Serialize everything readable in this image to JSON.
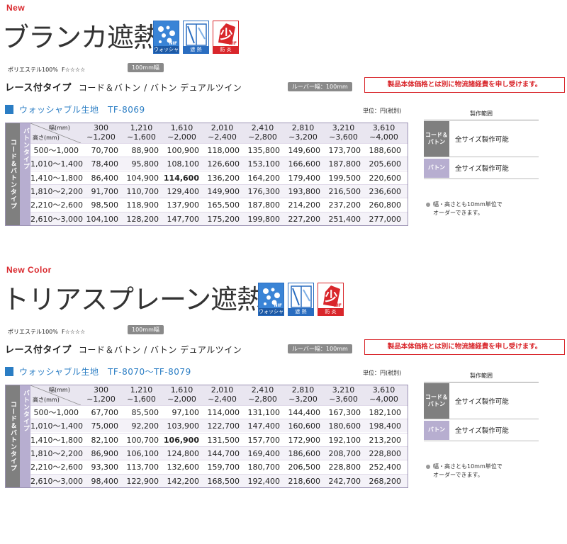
{
  "sections": [
    {
      "tag": "New",
      "title": "ブランカ遮熱",
      "icons": [
        {
          "name": "washable-icon",
          "label": "ウォッシャブル",
          "badge": "NIF"
        },
        {
          "name": "heat-shield-icon",
          "label": "遮 熱",
          "badge": ""
        },
        {
          "name": "fireproof-icon",
          "label": "防 炎",
          "badge": "NIF"
        }
      ],
      "material": "ポリエステル100%",
      "formaldehyde": "F☆☆☆☆",
      "width_badge": "100mm幅",
      "type_label": "レース付タイプ",
      "type_options": "コード＆バトン / バトン デュアルツイン",
      "louver_badge": "ルーバー幅：100mm",
      "notice": "製品本体価格とは別に物流諸経費を申し受けます。",
      "fabric": "ウォッシャブル生地　TF-8069",
      "unit": "単位：円(税別)",
      "side_cord": "コード＆バトンタイプ",
      "side_baton": "バトンタイプ",
      "header_width": "幅(mm)",
      "header_height": "高さ(mm)",
      "columns": [
        [
          "300",
          "~1,200"
        ],
        [
          "1,210",
          "~1,600"
        ],
        [
          "1,610",
          "~2,000"
        ],
        [
          "2,010",
          "~2,400"
        ],
        [
          "2,410",
          "~2,800"
        ],
        [
          "2,810",
          "~3,200"
        ],
        [
          "3,210",
          "~3,600"
        ],
        [
          "3,610",
          "~4,000"
        ]
      ],
      "rows": [
        {
          "h": "500～1,000",
          "v": [
            "70,700",
            "88,900",
            "100,900",
            "118,000",
            "135,800",
            "149,600",
            "173,700",
            "188,600"
          ]
        },
        {
          "h": "1,010～1,400",
          "v": [
            "78,400",
            "95,800",
            "108,100",
            "126,600",
            "153,100",
            "166,600",
            "187,800",
            "205,600"
          ]
        },
        {
          "h": "1,410～1,800",
          "v": [
            "86,400",
            "104,900",
            "114,600",
            "136,200",
            "164,200",
            "179,400",
            "199,500",
            "220,600"
          ]
        },
        {
          "h": "1,810～2,200",
          "v": [
            "91,700",
            "110,700",
            "129,400",
            "149,900",
            "176,300",
            "193,800",
            "216,500",
            "236,600"
          ]
        },
        {
          "h": "2,210～2,600",
          "v": [
            "98,500",
            "118,900",
            "137,900",
            "165,500",
            "187,800",
            "214,200",
            "237,200",
            "260,800"
          ]
        },
        {
          "h": "2,610～3,000",
          "v": [
            "104,100",
            "128,200",
            "147,700",
            "175,200",
            "199,800",
            "227,200",
            "251,400",
            "277,000"
          ]
        }
      ],
      "highlight": {
        "row": 2,
        "col": 2
      },
      "range_title": "製作範囲",
      "range_cord_label": "コード＆バトン",
      "range_cord_value": "全サイズ製作可能",
      "range_baton_label": "バトン",
      "range_baton_value": "全サイズ製作可能",
      "note1": "幅・高さとも10mm単位で",
      "note2": "オーダーできます。"
    },
    {
      "tag": "New Color",
      "title": "トリアスプレーン遮熱",
      "icons": [
        {
          "name": "washable-icon",
          "label": "ウォッシャブル",
          "badge": "NIF"
        },
        {
          "name": "heat-shield-icon",
          "label": "遮 熱",
          "badge": ""
        },
        {
          "name": "fireproof-icon",
          "label": "防 炎",
          "badge": "NIF"
        }
      ],
      "material": "ポリエステル100%",
      "formaldehyde": "F☆☆☆☆",
      "width_badge": "100mm幅",
      "type_label": "レース付タイプ",
      "type_options": "コード＆バトン / バトン デュアルツイン",
      "louver_badge": "ルーバー幅：100mm",
      "notice": "製品本体価格とは別に物流諸経費を申し受けます。",
      "fabric": "ウォッシャブル生地　TF-8070～TF-8079",
      "unit": "単位：円(税別)",
      "side_cord": "コード＆バトンタイプ",
      "side_baton": "バトンタイプ",
      "header_width": "幅(mm)",
      "header_height": "高さ(mm)",
      "columns": [
        [
          "300",
          "~1,200"
        ],
        [
          "1,210",
          "~1,600"
        ],
        [
          "1,610",
          "~2,000"
        ],
        [
          "2,010",
          "~2,400"
        ],
        [
          "2,410",
          "~2,800"
        ],
        [
          "2,810",
          "~3,200"
        ],
        [
          "3,210",
          "~3,600"
        ],
        [
          "3,610",
          "~4,000"
        ]
      ],
      "rows": [
        {
          "h": "500～1,000",
          "v": [
            "67,700",
            "85,500",
            "97,100",
            "114,000",
            "131,100",
            "144,400",
            "167,300",
            "182,100"
          ]
        },
        {
          "h": "1,010～1,400",
          "v": [
            "75,000",
            "92,200",
            "103,900",
            "122,700",
            "147,400",
            "160,600",
            "180,600",
            "198,400"
          ]
        },
        {
          "h": "1,410～1,800",
          "v": [
            "82,100",
            "100,700",
            "106,900",
            "131,500",
            "157,700",
            "172,900",
            "192,100",
            "213,200"
          ]
        },
        {
          "h": "1,810～2,200",
          "v": [
            "86,900",
            "106,100",
            "124,800",
            "144,700",
            "169,400",
            "186,600",
            "208,700",
            "228,800"
          ]
        },
        {
          "h": "2,210～2,600",
          "v": [
            "93,300",
            "113,700",
            "132,600",
            "159,700",
            "180,700",
            "206,500",
            "228,800",
            "252,400"
          ]
        },
        {
          "h": "2,610～3,000",
          "v": [
            "98,400",
            "122,900",
            "142,200",
            "168,500",
            "192,400",
            "218,600",
            "242,700",
            "268,200"
          ]
        }
      ],
      "highlight": {
        "row": 2,
        "col": 2
      },
      "range_title": "製作範囲",
      "range_cord_label": "コード＆バトン",
      "range_cord_value": "全サイズ製作可能",
      "range_baton_label": "バトン",
      "range_baton_value": "全サイズ製作可能",
      "note1": "幅・高さとも10mm単位で",
      "note2": "オーダーできます。"
    }
  ]
}
